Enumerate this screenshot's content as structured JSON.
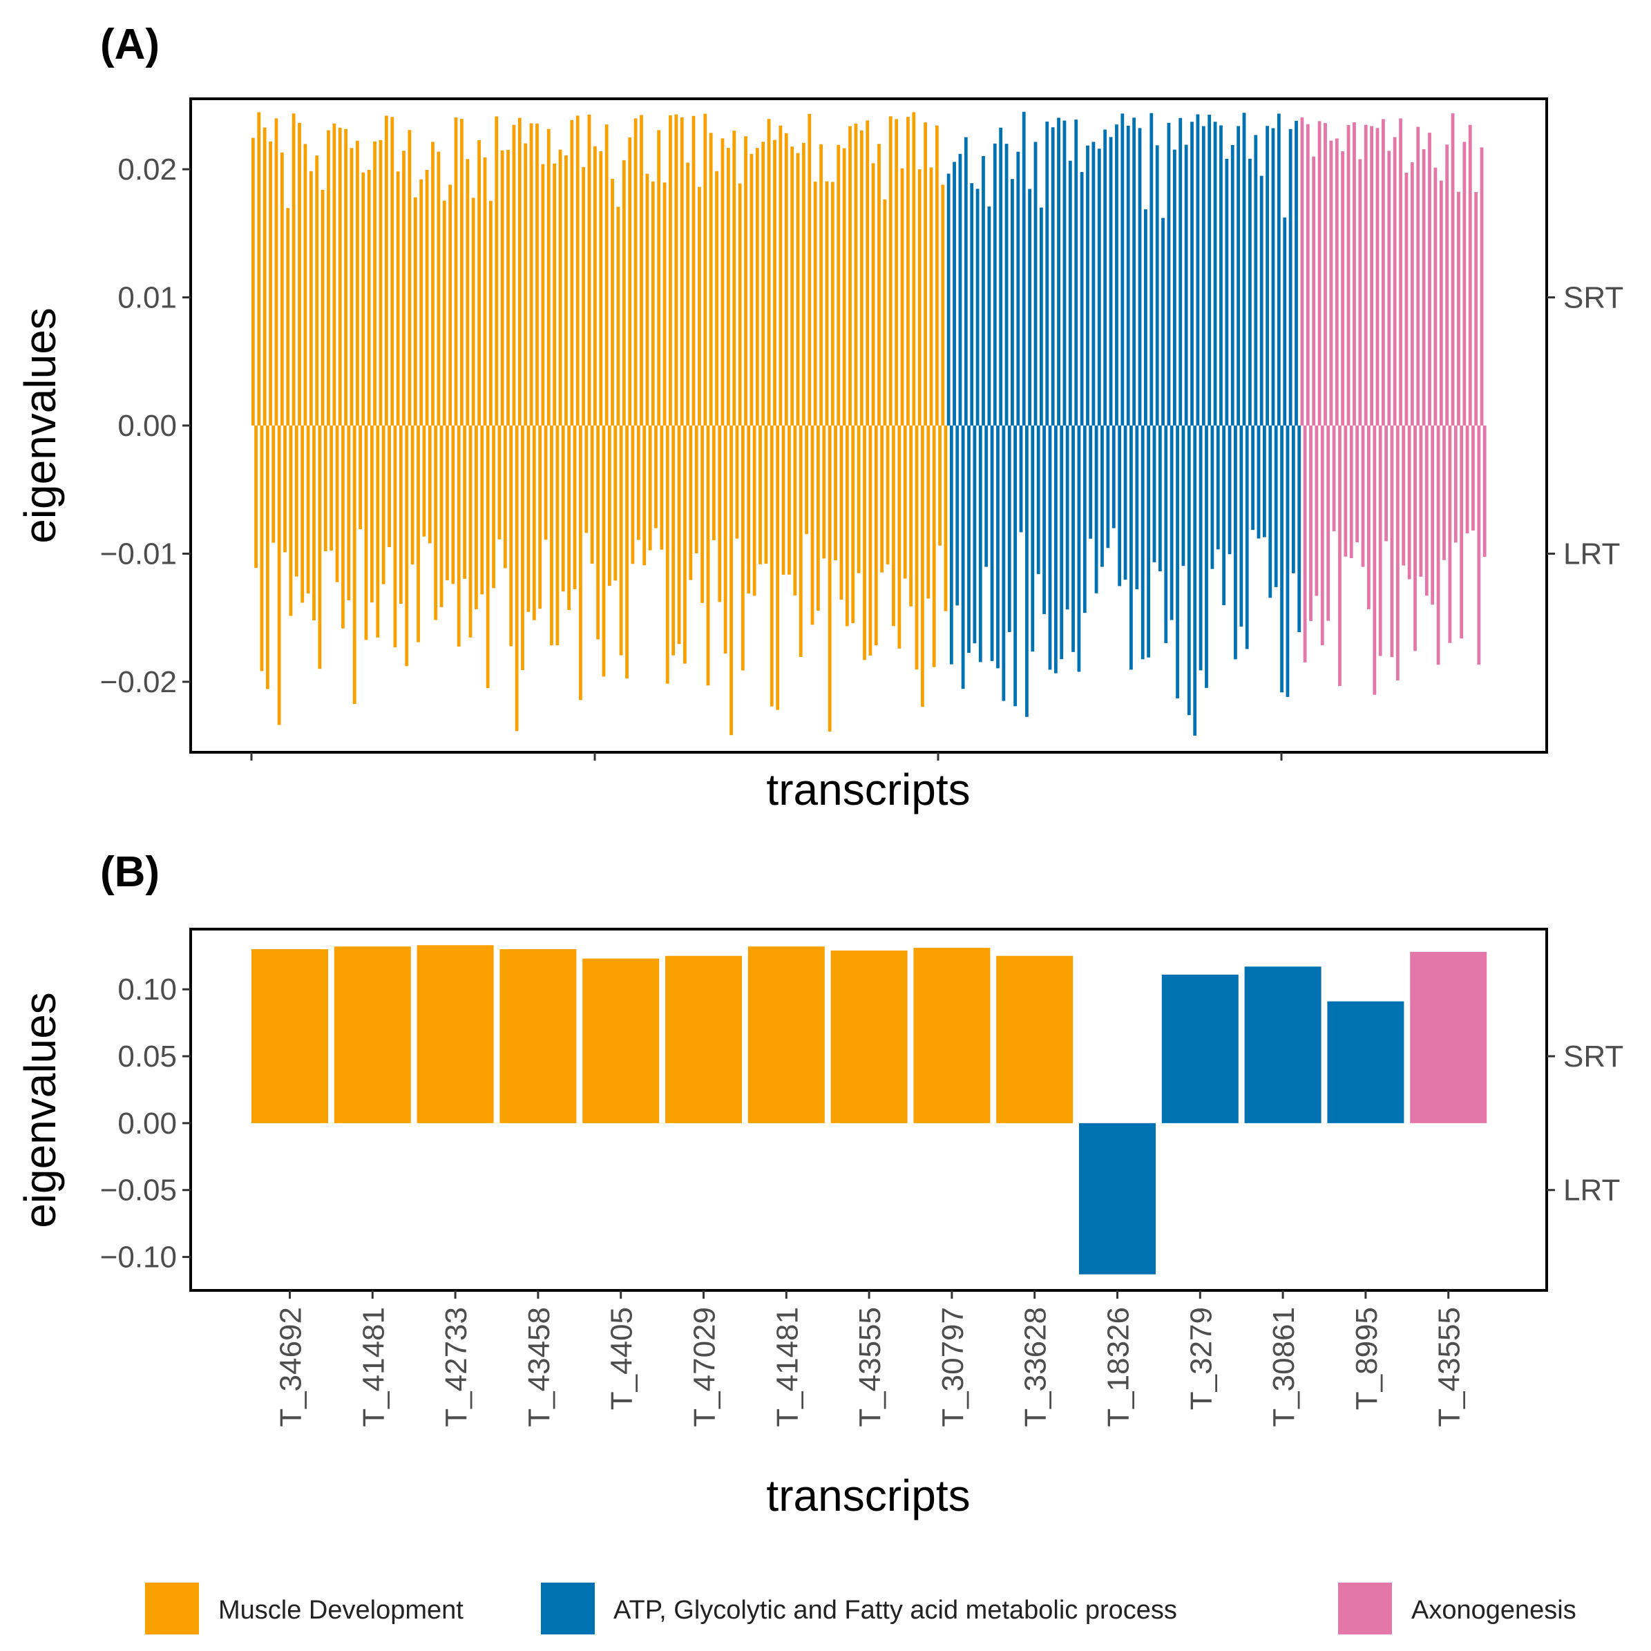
{
  "colors": {
    "muscle": "#F8A000",
    "atp": "#0072B2",
    "axon": "#E377A7",
    "axis": "#000000",
    "tick_text": "#4d4d4d"
  },
  "legend": [
    {
      "label": "Muscle Development",
      "color_key": "muscle"
    },
    {
      "label": "ATP, Glycolytic and Fatty acid metabolic process",
      "color_key": "atp"
    },
    {
      "label": "Axonogenesis",
      "color_key": "axon"
    }
  ],
  "chart_data": [
    {
      "panel": "(A)",
      "type": "bar",
      "xlabel": "transcripts",
      "ylabel": "eigenvalues",
      "ylim": [
        -0.0255,
        0.0255
      ],
      "yticks": [
        0.02,
        0.01,
        0.0,
        -0.01,
        -0.02
      ],
      "ytick_labels": [
        "0.02",
        "0.01",
        "0.00",
        "−0.01",
        "−0.02"
      ],
      "secondary_labels": [
        {
          "label": "SRT",
          "at": 0.01
        },
        {
          "label": "LRT",
          "at": -0.01
        }
      ],
      "groups": [
        {
          "name": "Muscle Development",
          "color_key": "muscle",
          "count": 240
        },
        {
          "name": "ATP, Glycolytic and Fatty acid metabolic process",
          "color_key": "atp",
          "count": 122
        },
        {
          "name": "Axonogenesis",
          "color_key": "axon",
          "count": 64
        }
      ],
      "value_envelope": {
        "positive_range": [
          0.015,
          0.0245
        ],
        "negative_range": [
          -0.0245,
          -0.008
        ]
      },
      "note": "Each transcript is a thin bar; dense series rendered from group envelopes."
    },
    {
      "panel": "(B)",
      "type": "bar",
      "xlabel": "transcripts",
      "ylabel": "eigenvalues",
      "ylim": [
        -0.125,
        0.145
      ],
      "yticks": [
        0.1,
        0.05,
        0.0,
        -0.05,
        -0.1
      ],
      "ytick_labels": [
        "0.10",
        "0.05",
        "0.00",
        "−0.05",
        "−0.10"
      ],
      "secondary_labels": [
        {
          "label": "SRT",
          "at": 0.05
        },
        {
          "label": "LRT",
          "at": -0.05
        }
      ],
      "categories": [
        "T_34692",
        "T_41481",
        "T_42733",
        "T_43458",
        "T_4405",
        "T_47029",
        "T_41481",
        "T_43555",
        "T_30797",
        "T_33628",
        "T_18326",
        "T_3279",
        "T_30861",
        "T_8995",
        "T_43555"
      ],
      "values": [
        0.13,
        0.132,
        0.133,
        0.13,
        0.123,
        0.125,
        0.132,
        0.129,
        0.131,
        0.125,
        -0.113,
        0.111,
        0.117,
        0.091,
        0.128
      ],
      "color_keys": [
        "muscle",
        "muscle",
        "muscle",
        "muscle",
        "muscle",
        "muscle",
        "muscle",
        "muscle",
        "muscle",
        "muscle",
        "atp",
        "atp",
        "atp",
        "atp",
        "axon"
      ]
    }
  ]
}
